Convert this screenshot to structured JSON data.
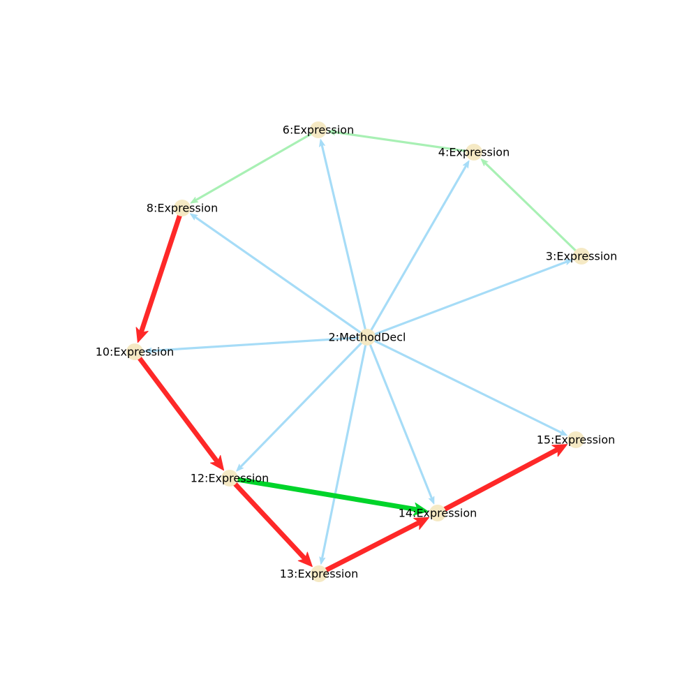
{
  "graph": {
    "nodes": [
      {
        "id": "2",
        "label": "2:MethodDecl"
      },
      {
        "id": "3",
        "label": "3:Expression"
      },
      {
        "id": "4",
        "label": "4:Expression"
      },
      {
        "id": "6",
        "label": "6:Expression"
      },
      {
        "id": "8",
        "label": "8:Expression"
      },
      {
        "id": "10",
        "label": "10:Expression"
      },
      {
        "id": "12",
        "label": "12:Expression"
      },
      {
        "id": "13",
        "label": "13:Expression"
      },
      {
        "id": "14",
        "label": "14:Expression"
      },
      {
        "id": "15",
        "label": "15:Expression"
      }
    ],
    "edges": [
      {
        "from": "2",
        "to": "3",
        "kind": "child"
      },
      {
        "from": "2",
        "to": "4",
        "kind": "child"
      },
      {
        "from": "2",
        "to": "6",
        "kind": "child"
      },
      {
        "from": "2",
        "to": "8",
        "kind": "child"
      },
      {
        "from": "2",
        "to": "10",
        "kind": "child"
      },
      {
        "from": "2",
        "to": "12",
        "kind": "child"
      },
      {
        "from": "2",
        "to": "13",
        "kind": "child"
      },
      {
        "from": "2",
        "to": "14",
        "kind": "child"
      },
      {
        "from": "2",
        "to": "15",
        "kind": "child"
      },
      {
        "from": "3",
        "to": "4",
        "kind": "next-light"
      },
      {
        "from": "4",
        "to": "6",
        "kind": "next-light"
      },
      {
        "from": "6",
        "to": "8",
        "kind": "next-light"
      },
      {
        "from": "12",
        "to": "14",
        "kind": "next-strong"
      },
      {
        "from": "8",
        "to": "10",
        "kind": "flow"
      },
      {
        "from": "10",
        "to": "12",
        "kind": "flow"
      },
      {
        "from": "12",
        "to": "13",
        "kind": "flow"
      },
      {
        "from": "13",
        "to": "14",
        "kind": "flow"
      },
      {
        "from": "14",
        "to": "15",
        "kind": "flow"
      }
    ],
    "colors": {
      "node_fill": "#f5e9c4",
      "child": "#a6dcf7",
      "next-light": "#a8f0b4",
      "next-strong": "#00d42a",
      "flow": "#fe2828"
    }
  }
}
